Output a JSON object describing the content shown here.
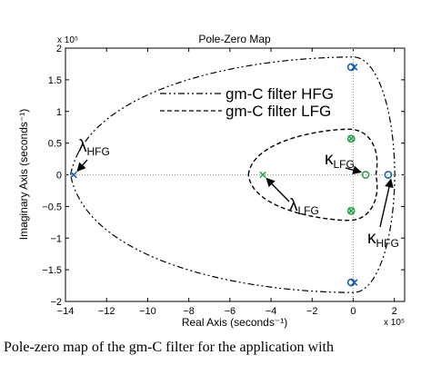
{
  "chart_data": {
    "type": "scatter",
    "title": "Pole-Zero Map",
    "xlabel": "Real Axis (seconds⁻¹)",
    "ylabel": "Imaginary Axis (seconds⁻¹)",
    "x_exponent": "x 10⁵",
    "y_exponent": "x 10⁵",
    "xlim": [
      -14,
      2.5
    ],
    "ylim": [
      -2,
      2
    ],
    "xticks": [
      -14,
      -12,
      -10,
      -8,
      -6,
      -4,
      -2,
      0,
      2
    ],
    "xtick_labels": [
      "−14",
      "−12",
      "−10",
      "−8",
      "−6",
      "−4",
      "−2",
      "0",
      "2"
    ],
    "yticks": [
      2,
      1.5,
      1,
      0.5,
      0,
      -0.5,
      -1,
      -1.5,
      -2
    ],
    "ytick_labels": [
      "2",
      "1.5",
      "1",
      "0.5",
      "0",
      "−0.5",
      "−1",
      "−1.5",
      "−2"
    ],
    "legend": {
      "placement": "top-center",
      "entries": [
        {
          "label": "gm-C filter HFG",
          "style": "dash-dot"
        },
        {
          "label": "gm-C filter LFG",
          "style": "dashed"
        }
      ]
    },
    "series": [
      {
        "group": "HFG",
        "color": "#1f5fa8",
        "poles": [
          [
            -13.6,
            0
          ],
          [
            0.05,
            1.7
          ],
          [
            0.05,
            -1.7
          ]
        ],
        "zeros": [
          [
            1.7,
            0
          ],
          [
            -0.1,
            1.7
          ],
          [
            -0.1,
            -1.7
          ]
        ]
      },
      {
        "group": "LFG",
        "color": "#2ca34a",
        "poles": [
          [
            -4.4,
            0
          ],
          [
            -0.1,
            0.57
          ],
          [
            -0.1,
            -0.57
          ]
        ],
        "zeros": [
          [
            0.6,
            0
          ],
          [
            -0.1,
            0.57
          ],
          [
            -0.1,
            -0.57
          ]
        ]
      }
    ],
    "annotations": [
      {
        "symbol": "λ",
        "sub": "HFG",
        "target": [
          -13.6,
          0
        ]
      },
      {
        "symbol": "λ",
        "sub": "LFG",
        "target": [
          -4.4,
          0
        ]
      },
      {
        "symbol": "κ",
        "sub": "LFG",
        "target": [
          0.6,
          0
        ]
      },
      {
        "symbol": "κ",
        "sub": "HFG",
        "target": [
          1.7,
          0
        ]
      }
    ]
  },
  "caption": "Pole-zero map of the gm-C filter for the application with"
}
